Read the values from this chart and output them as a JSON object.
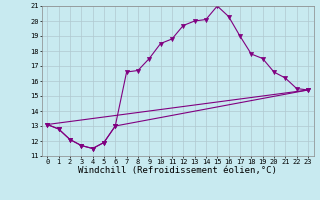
{
  "xlabel": "Windchill (Refroidissement éolien,°C)",
  "background_color": "#c8eaf0",
  "line_color": "#800080",
  "xlim": [
    -0.5,
    23.5
  ],
  "ylim": [
    11,
    21
  ],
  "xticks": [
    0,
    1,
    2,
    3,
    4,
    5,
    6,
    7,
    8,
    9,
    10,
    11,
    12,
    13,
    14,
    15,
    16,
    17,
    18,
    19,
    20,
    21,
    22,
    23
  ],
  "yticks": [
    11,
    12,
    13,
    14,
    15,
    16,
    17,
    18,
    19,
    20,
    21
  ],
  "grid_color": "#b0c8d0",
  "line1_x": [
    0,
    1,
    2,
    3,
    4,
    5,
    6,
    7,
    8,
    9,
    10,
    11,
    12,
    13,
    14,
    15,
    16,
    17,
    18,
    19,
    20,
    21,
    22,
    23
  ],
  "line1_y": [
    13.1,
    12.8,
    12.1,
    11.7,
    11.5,
    11.9,
    13.0,
    16.6,
    16.7,
    17.5,
    18.5,
    18.8,
    19.7,
    20.0,
    20.1,
    21.0,
    20.3,
    19.0,
    17.8,
    17.5,
    16.6,
    16.2,
    15.5,
    15.4
  ],
  "line2_x": [
    0,
    1,
    2,
    3,
    4,
    5,
    6,
    23
  ],
  "line2_y": [
    13.1,
    12.8,
    12.1,
    11.7,
    11.5,
    11.9,
    13.0,
    15.4
  ],
  "line3_x": [
    0,
    23
  ],
  "line3_y": [
    13.1,
    15.4
  ],
  "marker": "v",
  "marker_size": 3,
  "linewidth": 0.8,
  "tick_fontsize": 5.0,
  "xlabel_fontsize": 6.5
}
